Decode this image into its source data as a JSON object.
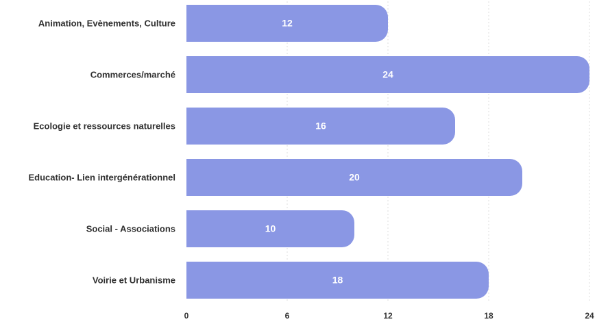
{
  "chart_data": {
    "type": "bar",
    "orientation": "horizontal",
    "categories": [
      "Animation, Evènements, Culture",
      "Commerces/marché",
      "Ecologie et ressources naturelles",
      "Education- Lien intergénérationnel",
      "Social - Associations",
      "Voirie et Urbanisme"
    ],
    "values": [
      12,
      24,
      16,
      20,
      10,
      18
    ],
    "xlim": [
      0,
      24
    ],
    "xticks": [
      "0",
      "6",
      "12",
      "18",
      "24"
    ],
    "bar_color": "#8a97e4",
    "value_label_color": "#ffffff",
    "grid": true,
    "title": "",
    "xlabel": "",
    "ylabel": ""
  }
}
